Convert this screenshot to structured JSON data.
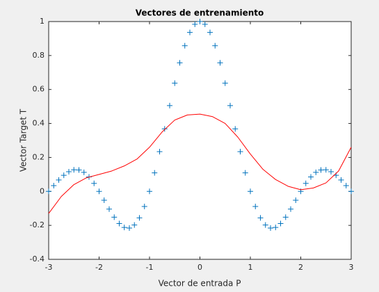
{
  "chart_data": {
    "type": "scatter",
    "title": "Vectores de entrenamiento",
    "xlabel": "Vector de entrada P",
    "ylabel": "Vector Target T",
    "xlim": [
      -3,
      3
    ],
    "ylim": [
      -0.4,
      1
    ],
    "xticks": [
      -3,
      -2,
      -1,
      0,
      1,
      2,
      3
    ],
    "yticks": [
      -0.4,
      -0.2,
      0,
      0.2,
      0.4,
      0.6,
      0.8,
      1
    ],
    "grid": false,
    "series": [
      {
        "color": "#0072bd",
        "marker": "+",
        "x": [
          -3,
          -2.9,
          -2.8,
          -2.7,
          -2.6,
          -2.5,
          -2.4,
          -2.3,
          -2.2,
          -2.1,
          -2,
          -1.9,
          -1.8,
          -1.7,
          -1.6,
          -1.5,
          -1.4,
          -1.3,
          -1.2,
          -1.1,
          -1,
          -0.9,
          -0.8,
          -0.7,
          -0.6,
          -0.5,
          -0.4,
          -0.3,
          -0.2,
          -0.1,
          0,
          0.1,
          0.2,
          0.3,
          0.4,
          0.5,
          0.6,
          0.7,
          0.8,
          0.9,
          1,
          1.1,
          1.2,
          1.3,
          1.4,
          1.5,
          1.6,
          1.7,
          1.8,
          1.9,
          2,
          2.1,
          2.2,
          2.3,
          2.4,
          2.5,
          2.6,
          2.7,
          2.8,
          2.9,
          3
        ],
        "values": [
          0,
          0.034,
          0.067,
          0.095,
          0.116,
          0.127,
          0.126,
          0.112,
          0.085,
          0.047,
          0,
          -0.052,
          -0.104,
          -0.152,
          -0.189,
          -0.212,
          -0.216,
          -0.198,
          -0.156,
          -0.089,
          0,
          0.109,
          0.234,
          0.368,
          0.505,
          0.637,
          0.757,
          0.858,
          0.936,
          0.984,
          1,
          0.984,
          0.936,
          0.858,
          0.757,
          0.637,
          0.505,
          0.368,
          0.234,
          0.109,
          0,
          -0.089,
          -0.156,
          -0.198,
          -0.216,
          -0.212,
          -0.189,
          -0.152,
          -0.104,
          -0.052,
          0,
          0.047,
          0.085,
          0.112,
          0.126,
          0.127,
          0.116,
          0.095,
          0.067,
          0.034,
          0
        ]
      },
      {
        "color": "#ff0000",
        "marker": "none",
        "x": [
          -3,
          -2.75,
          -2.5,
          -2.25,
          -2,
          -1.75,
          -1.5,
          -1.25,
          -1,
          -0.75,
          -0.5,
          -0.25,
          0,
          0.25,
          0.5,
          0.75,
          1,
          1.25,
          1.5,
          1.75,
          2,
          2.25,
          2.5,
          2.75,
          3
        ],
        "values": [
          -0.13,
          -0.03,
          0.04,
          0.08,
          0.1,
          0.12,
          0.15,
          0.19,
          0.26,
          0.35,
          0.42,
          0.45,
          0.455,
          0.44,
          0.4,
          0.32,
          0.22,
          0.13,
          0.07,
          0.03,
          0.01,
          0.02,
          0.05,
          0.12,
          0.26
        ]
      }
    ]
  }
}
